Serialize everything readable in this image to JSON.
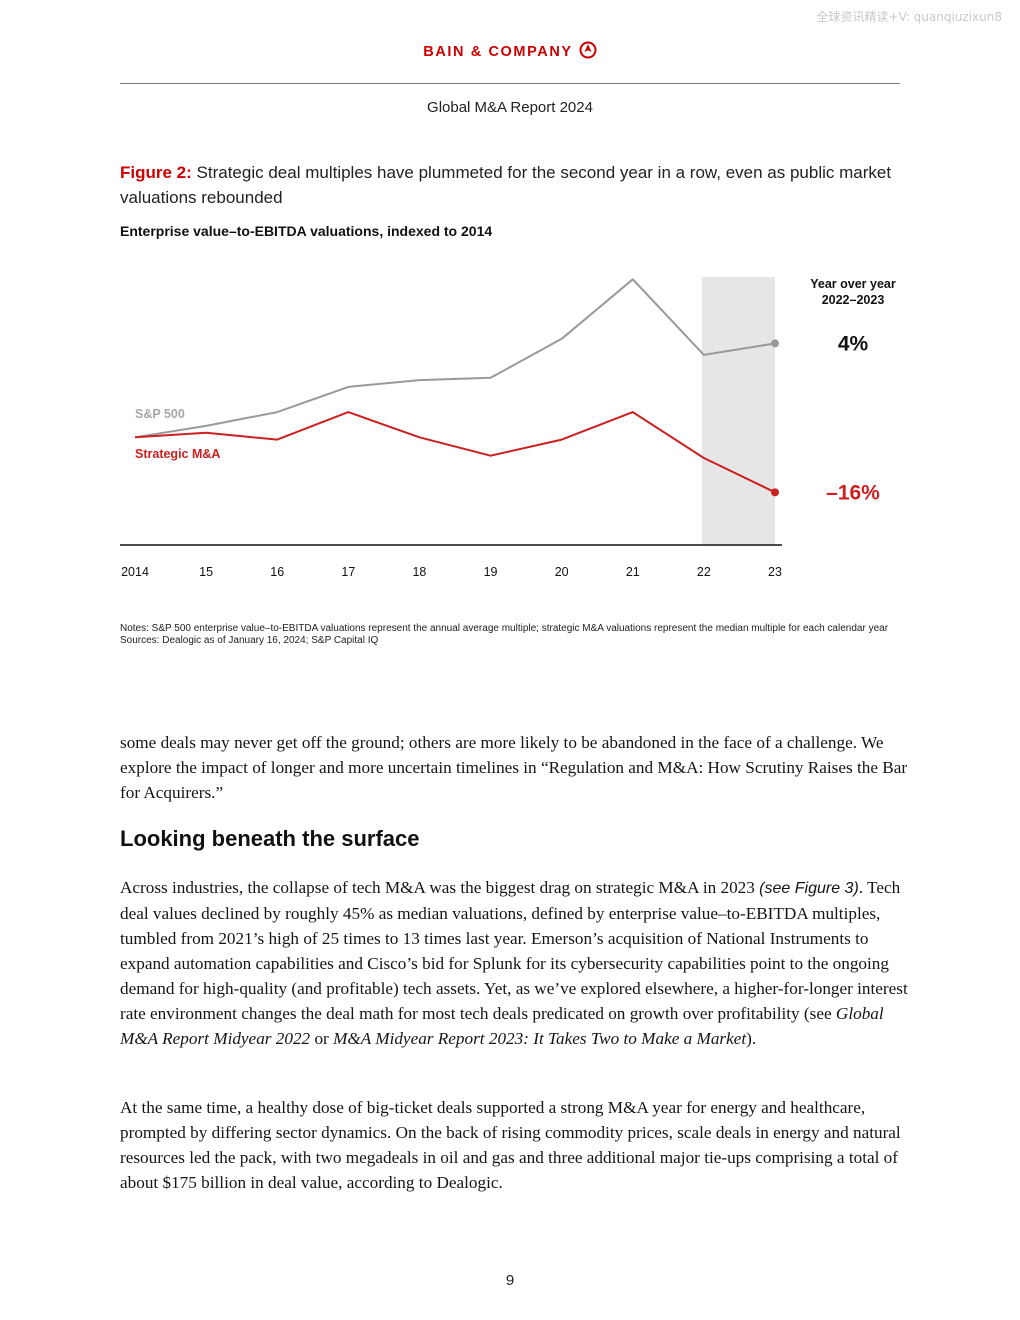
{
  "watermark": "全球资讯精读+V: quanqiuzixun8",
  "header": {
    "brand": "BAIN & COMPANY",
    "report_title": "Global M&A Report 2024"
  },
  "figure": {
    "label": "Figure 2:",
    "title": "Strategic deal multiples have plummeted for the second year in a row, even as public market valuations rebounded",
    "chart_title": "Enterprise value–to-EBITDA valuations, indexed to 2014"
  },
  "chart_data": {
    "type": "line",
    "title": "Enterprise value–to-EBITDA valuations, indexed to 2014",
    "x": [
      "2014",
      "15",
      "16",
      "17",
      "18",
      "19",
      "20",
      "21",
      "22",
      "23"
    ],
    "series": [
      {
        "name": "S&P 500",
        "color": "#999999",
        "values": [
          100,
          105,
          111,
          122,
          125,
          126,
          143,
          169,
          136,
          141
        ]
      },
      {
        "name": "Strategic M&A",
        "color": "#cc1f1f",
        "values": [
          100,
          102,
          99,
          111,
          100,
          92,
          99,
          111,
          91,
          76
        ]
      }
    ],
    "highlight_range": [
      "22",
      "23"
    ],
    "ylim": [
      53,
      170
    ],
    "yoy_header": [
      "Year over year",
      "2022–2023"
    ],
    "yoy_labels": [
      {
        "series": "S&P 500",
        "text": "4%",
        "color": "#111111"
      },
      {
        "series": "Strategic M&A",
        "text": "–16%",
        "color": "#cc1f1f"
      }
    ],
    "grid": false,
    "legend": "inline-left"
  },
  "notes": {
    "notes_text": "Notes: S&P 500 enterprise value–to-EBITDA valuations represent the annual average multiple; strategic M&A valuations represent the median multiple for each calendar year",
    "sources_text": "Sources: Dealogic as of January 16, 2024; S&P Capital IQ"
  },
  "body": {
    "para0": "some deals may never get off the ground; others are more likely to be abandoned in the face of a challenge. We explore the impact of longer and more uncertain timelines in “Regulation and M&A: How Scrutiny Raises the Bar for Acquirers.”",
    "heading": "Looking beneath the surface",
    "para1_a": "Across industries, the collapse of tech M&A was the biggest drag on strategic M&A in 2023",
    "para1_ref": "(see Figure 3)",
    "para1_b": ". Tech deal values declined by roughly 45% as median valuations, defined by enterprise value–to-EBITDA multiples, tumbled from 2021’s high of 25 times to 13 times last year. Emerson’s acquisition of National Instruments to expand automation capabilities and Cisco’s bid for Splunk for its cybersecurity capabilities point to the ongoing demand for high-quality (and profitable) tech assets. Yet, as we’ve explored elsewhere, a higher-for-longer interest rate environment changes the deal math for most tech deals predicated on growth over profitability (see ",
    "para1_cite1": "Global M&A Report Midyear 2022",
    "para1_or": " or ",
    "para1_cite2": "M&A Midyear Report 2023: It Takes Two to Make a Market",
    "para1_end": ").",
    "para2": "At the same time, a healthy dose of big-ticket deals supported a strong M&A year for energy and healthcare, prompted by differing sector dynamics. On the back of rising commodity prices, scale deals in energy and natural resources led the pack, with two megadeals in oil and gas and three additional major tie-ups comprising a total of about $175 billion in deal value, according to Dealogic."
  },
  "page_number": "9"
}
